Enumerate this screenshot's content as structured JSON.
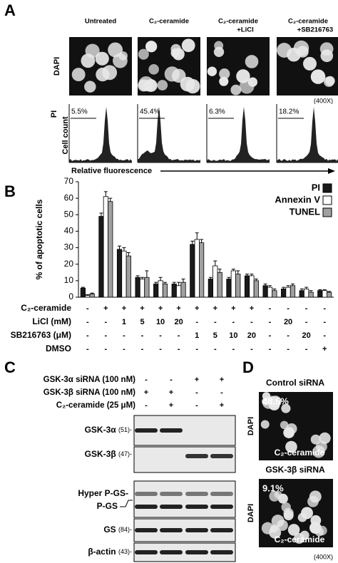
{
  "panel_a": {
    "label": "A",
    "columns": [
      {
        "header": [
          "Untreated"
        ],
        "percent": "5.5%"
      },
      {
        "header": [
          "C₂-ceramide"
        ],
        "percent": "45.4%"
      },
      {
        "header": [
          "C₂-ceramide",
          "+LiCl"
        ],
        "percent": "6.3%"
      },
      {
        "header": [
          "C₂-ceramide",
          "+SB216763"
        ],
        "percent": "18.2%"
      }
    ],
    "dapi": "DAPI",
    "pi": "PI",
    "cell_count": "Cell count",
    "magnification": "(400X)",
    "x_axis": "Relative fluorescence"
  },
  "chart_data": {
    "type": "bar",
    "panel_label": "B",
    "y_label": "% of apoptotic cells",
    "ylim": [
      0,
      70
    ],
    "yticks": [
      0,
      10,
      20,
      30,
      40,
      50,
      60,
      70
    ],
    "legend": "top-right",
    "series": [
      {
        "name": "PI",
        "color": "#1a1a1a",
        "values": [
          5.5,
          49,
          29,
          12,
          8,
          8,
          32,
          11,
          11,
          13,
          7,
          5,
          4,
          4
        ],
        "errors": [
          0.5,
          2,
          2,
          1,
          1,
          1,
          2,
          1,
          1,
          1,
          1,
          1,
          1,
          0.5
        ]
      },
      {
        "name": "Annexin V",
        "color": "#ffffff",
        "values": [
          1,
          61,
          28,
          11,
          10,
          7,
          35,
          19,
          16,
          13,
          6,
          6,
          5,
          4
        ],
        "errors": [
          0.5,
          3,
          2,
          1,
          2,
          2,
          4,
          3,
          1,
          1,
          1,
          1,
          1,
          0.5
        ]
      },
      {
        "name": "TUNEL",
        "color": "#a0a0a0",
        "values": [
          2,
          58,
          25,
          12,
          8,
          9,
          33,
          15,
          14,
          10,
          4,
          7,
          3,
          3
        ],
        "errors": [
          0.5,
          2,
          2,
          4,
          1,
          2,
          2,
          2,
          2,
          1,
          1,
          1,
          1,
          0.5
        ]
      }
    ],
    "conditions": [
      {
        "label": "C₂-ceramide",
        "values": [
          "-",
          "+",
          "+",
          "+",
          "+",
          "+",
          "+",
          "+",
          "+",
          "+",
          "-",
          "-",
          "-",
          "-"
        ]
      },
      {
        "label": "LiCl (mM)",
        "values": [
          "-",
          "-",
          "1",
          "5",
          "10",
          "20",
          "-",
          "-",
          "-",
          "-",
          "-",
          "20",
          "-",
          "-"
        ]
      },
      {
        "label": "SB216763 (μM)",
        "values": [
          "-",
          "-",
          "-",
          "-",
          "-",
          "-",
          "1",
          "5",
          "10",
          "20",
          "-",
          "-",
          "20",
          "-"
        ]
      },
      {
        "label": "DMSO",
        "values": [
          "-",
          "-",
          "-",
          "-",
          "-",
          "-",
          "-",
          "-",
          "-",
          "-",
          "-",
          "-",
          "-",
          "+"
        ]
      }
    ]
  },
  "panel_c": {
    "label": "C",
    "conditions": [
      {
        "label": "GSK-3α siRNA (100 nM)",
        "values": [
          "-",
          "-",
          "+",
          "+"
        ]
      },
      {
        "label": "GSK-3β siRNA (100 nM)",
        "values": [
          "+",
          "+",
          "-",
          "-"
        ]
      },
      {
        "label": "C₂-ceramide (25 μM)",
        "values": [
          "-",
          "+",
          "-",
          "+"
        ]
      }
    ],
    "blots": [
      {
        "name": "GSK-3α",
        "size": "(51)-"
      },
      {
        "name": "GSK-3β",
        "size": "(47)-"
      },
      {
        "name": "Hyper P-GS-",
        "size": "P-GS"
      },
      {
        "name": "GS",
        "size": "(84)-"
      },
      {
        "name": "β-actin",
        "size": "(43)-"
      }
    ]
  },
  "panel_d": {
    "label": "D",
    "images": [
      {
        "title": "Control siRNA",
        "percent": "48.5%",
        "stain": "DAPI",
        "treatment": "C₂-ceramide"
      },
      {
        "title": "GSK-3β siRNA",
        "percent": "9.1%",
        "stain": "DAPI",
        "treatment": "C₂-ceramide"
      }
    ],
    "magnification": "(400X)"
  }
}
